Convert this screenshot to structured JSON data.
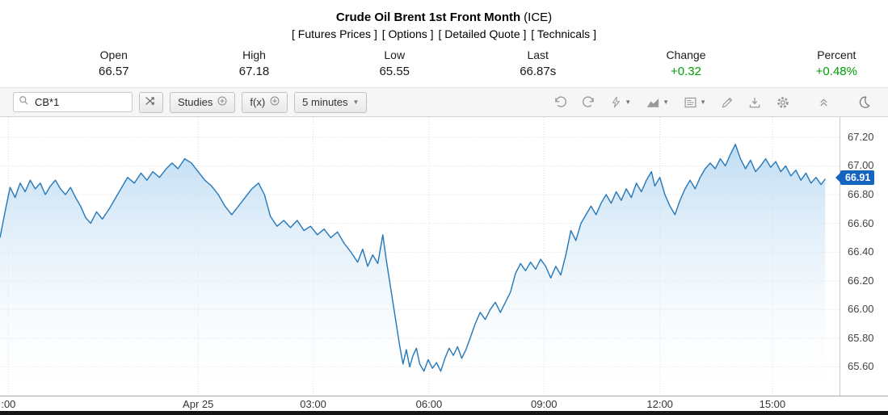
{
  "header": {
    "title": "Crude Oil Brent 1st Front Month",
    "exchange": "(ICE)",
    "links": [
      "[ Futures Prices ]",
      "[ Options ]",
      "[ Detailed Quote ]",
      "[ Technicals ]"
    ]
  },
  "stats": [
    {
      "label": "Open",
      "value": "66.57"
    },
    {
      "label": "High",
      "value": "67.18"
    },
    {
      "label": "Low",
      "value": "65.55"
    },
    {
      "label": "Last",
      "value": "66.87s"
    },
    {
      "label": "Change",
      "value": "+0.32"
    },
    {
      "label": "Percent",
      "value": "+0.48%"
    }
  ],
  "colors": {
    "up_green": "#00a005",
    "accent_blue": "#1565c0",
    "toolbar_bg": "#f6f6f6"
  },
  "toolbar": {
    "symbol": "CB*1",
    "studies_label": "Studies",
    "fx_label": "f(x)",
    "interval": "5 minutes",
    "icons": [
      "search",
      "compare",
      "add-study-plus",
      "add-function-plus",
      "interval-caret",
      "undo",
      "redo",
      "events-lightning",
      "chart-type-area",
      "quote-board",
      "draw-pencil",
      "download",
      "settings-gear",
      "collapse-toolbar",
      "dark-mode-moon"
    ]
  },
  "chart_data": {
    "type": "area",
    "title": "Crude Oil Brent 1st Front Month (ICE) 5 minutes",
    "last_price": "66.91",
    "line_color": "#2a7ab9",
    "fill_top": "#b9d9f2",
    "ylim": [
      65.4,
      67.34
    ],
    "yticks": [
      67.2,
      67.0,
      66.8,
      66.6,
      66.4,
      66.2,
      66.0,
      65.8,
      65.6
    ],
    "ytick_labels": [
      "67.20",
      "67.00",
      "66.80",
      "66.60",
      "66.40",
      "66.20",
      "66.00",
      "65.80",
      "65.60"
    ],
    "x_labels": [
      {
        "label": ":00",
        "f": 0.01
      },
      {
        "label": "Apr 25",
        "f": 0.236
      },
      {
        "label": "03:00",
        "f": 0.373
      },
      {
        "label": "06:00",
        "f": 0.511
      },
      {
        "label": "09:00",
        "f": 0.648
      },
      {
        "label": "12:00",
        "f": 0.786
      },
      {
        "label": "15:00",
        "f": 0.92
      }
    ],
    "points": [
      [
        0.0,
        66.5
      ],
      [
        0.006,
        66.68
      ],
      [
        0.012,
        66.85
      ],
      [
        0.018,
        66.78
      ],
      [
        0.024,
        66.88
      ],
      [
        0.03,
        66.82
      ],
      [
        0.036,
        66.9
      ],
      [
        0.042,
        66.84
      ],
      [
        0.048,
        66.88
      ],
      [
        0.054,
        66.8
      ],
      [
        0.06,
        66.86
      ],
      [
        0.066,
        66.9
      ],
      [
        0.072,
        66.84
      ],
      [
        0.078,
        66.8
      ],
      [
        0.084,
        66.85
      ],
      [
        0.09,
        66.78
      ],
      [
        0.096,
        66.72
      ],
      [
        0.102,
        66.64
      ],
      [
        0.108,
        66.6
      ],
      [
        0.115,
        66.68
      ],
      [
        0.122,
        66.63
      ],
      [
        0.13,
        66.7
      ],
      [
        0.138,
        66.78
      ],
      [
        0.145,
        66.85
      ],
      [
        0.152,
        66.92
      ],
      [
        0.16,
        66.88
      ],
      [
        0.168,
        66.95
      ],
      [
        0.175,
        66.9
      ],
      [
        0.182,
        66.96
      ],
      [
        0.19,
        66.92
      ],
      [
        0.198,
        66.98
      ],
      [
        0.205,
        67.02
      ],
      [
        0.212,
        66.98
      ],
      [
        0.22,
        67.05
      ],
      [
        0.228,
        67.02
      ],
      [
        0.236,
        66.96
      ],
      [
        0.244,
        66.9
      ],
      [
        0.252,
        66.86
      ],
      [
        0.26,
        66.8
      ],
      [
        0.268,
        66.72
      ],
      [
        0.276,
        66.66
      ],
      [
        0.284,
        66.72
      ],
      [
        0.292,
        66.78
      ],
      [
        0.3,
        66.84
      ],
      [
        0.308,
        66.88
      ],
      [
        0.315,
        66.8
      ],
      [
        0.322,
        66.65
      ],
      [
        0.33,
        66.58
      ],
      [
        0.338,
        66.62
      ],
      [
        0.346,
        66.57
      ],
      [
        0.354,
        66.62
      ],
      [
        0.362,
        66.55
      ],
      [
        0.37,
        66.58
      ],
      [
        0.378,
        66.52
      ],
      [
        0.386,
        66.56
      ],
      [
        0.394,
        66.5
      ],
      [
        0.402,
        66.54
      ],
      [
        0.41,
        66.46
      ],
      [
        0.418,
        66.4
      ],
      [
        0.426,
        66.33
      ],
      [
        0.432,
        66.42
      ],
      [
        0.438,
        66.3
      ],
      [
        0.444,
        66.38
      ],
      [
        0.45,
        66.32
      ],
      [
        0.456,
        66.52
      ],
      [
        0.46,
        66.35
      ],
      [
        0.464,
        66.2
      ],
      [
        0.468,
        66.05
      ],
      [
        0.472,
        65.9
      ],
      [
        0.476,
        65.75
      ],
      [
        0.48,
        65.62
      ],
      [
        0.484,
        65.72
      ],
      [
        0.488,
        65.6
      ],
      [
        0.492,
        65.68
      ],
      [
        0.496,
        65.73
      ],
      [
        0.5,
        65.62
      ],
      [
        0.505,
        65.57
      ],
      [
        0.51,
        65.65
      ],
      [
        0.515,
        65.59
      ],
      [
        0.52,
        65.63
      ],
      [
        0.525,
        65.57
      ],
      [
        0.53,
        65.66
      ],
      [
        0.535,
        65.73
      ],
      [
        0.54,
        65.68
      ],
      [
        0.545,
        65.74
      ],
      [
        0.55,
        65.66
      ],
      [
        0.555,
        65.72
      ],
      [
        0.56,
        65.8
      ],
      [
        0.566,
        65.9
      ],
      [
        0.572,
        65.98
      ],
      [
        0.578,
        65.93
      ],
      [
        0.584,
        66.0
      ],
      [
        0.59,
        66.05
      ],
      [
        0.596,
        65.98
      ],
      [
        0.602,
        66.05
      ],
      [
        0.608,
        66.12
      ],
      [
        0.614,
        66.25
      ],
      [
        0.62,
        66.32
      ],
      [
        0.626,
        66.27
      ],
      [
        0.632,
        66.33
      ],
      [
        0.638,
        66.28
      ],
      [
        0.644,
        66.35
      ],
      [
        0.65,
        66.3
      ],
      [
        0.656,
        66.22
      ],
      [
        0.662,
        66.3
      ],
      [
        0.668,
        66.24
      ],
      [
        0.674,
        66.38
      ],
      [
        0.68,
        66.55
      ],
      [
        0.686,
        66.48
      ],
      [
        0.692,
        66.6
      ],
      [
        0.698,
        66.66
      ],
      [
        0.704,
        66.72
      ],
      [
        0.71,
        66.66
      ],
      [
        0.716,
        66.74
      ],
      [
        0.722,
        66.8
      ],
      [
        0.728,
        66.74
      ],
      [
        0.734,
        66.82
      ],
      [
        0.74,
        66.76
      ],
      [
        0.746,
        66.84
      ],
      [
        0.752,
        66.78
      ],
      [
        0.758,
        66.88
      ],
      [
        0.764,
        66.82
      ],
      [
        0.77,
        66.9
      ],
      [
        0.776,
        66.96
      ],
      [
        0.78,
        66.86
      ],
      [
        0.786,
        66.92
      ],
      [
        0.792,
        66.8
      ],
      [
        0.798,
        66.72
      ],
      [
        0.804,
        66.66
      ],
      [
        0.81,
        66.76
      ],
      [
        0.816,
        66.84
      ],
      [
        0.822,
        66.9
      ],
      [
        0.828,
        66.84
      ],
      [
        0.834,
        66.92
      ],
      [
        0.84,
        66.98
      ],
      [
        0.846,
        67.02
      ],
      [
        0.852,
        66.98
      ],
      [
        0.858,
        67.05
      ],
      [
        0.864,
        67.0
      ],
      [
        0.87,
        67.08
      ],
      [
        0.876,
        67.15
      ],
      [
        0.882,
        67.05
      ],
      [
        0.888,
        66.98
      ],
      [
        0.894,
        67.04
      ],
      [
        0.9,
        66.96
      ],
      [
        0.906,
        67.0
      ],
      [
        0.912,
        67.05
      ],
      [
        0.918,
        66.99
      ],
      [
        0.924,
        67.03
      ],
      [
        0.93,
        66.96
      ],
      [
        0.936,
        67.0
      ],
      [
        0.942,
        66.93
      ],
      [
        0.948,
        66.97
      ],
      [
        0.954,
        66.9
      ],
      [
        0.96,
        66.95
      ],
      [
        0.966,
        66.88
      ],
      [
        0.972,
        66.92
      ],
      [
        0.978,
        66.87
      ],
      [
        0.983,
        66.91
      ]
    ]
  }
}
